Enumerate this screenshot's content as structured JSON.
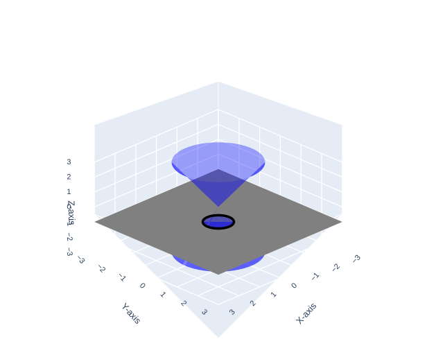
{
  "chart_data": {
    "type": "surface3d",
    "title": "",
    "axes": {
      "x": {
        "title": "X-axis",
        "range": [
          -3,
          3
        ],
        "ticks": [
          -3,
          -2,
          -1,
          0,
          1,
          2,
          3
        ]
      },
      "y": {
        "title": "Y-axis",
        "range": [
          -3,
          3
        ],
        "ticks": [
          -3,
          -2,
          -1,
          0,
          1,
          2,
          3
        ]
      },
      "z": {
        "title": "Z-axis",
        "range": [
          -3,
          3
        ],
        "ticks": [
          -3,
          -2,
          -1,
          0,
          1,
          2,
          3
        ]
      }
    },
    "scene": {
      "background": "#e5ecf6",
      "gridcolor": "#ffffff"
    },
    "traces": [
      {
        "kind": "double-cone",
        "apex_z": 0,
        "radius_at_z3": 1.6,
        "z_range": [
          -3,
          3
        ],
        "color": "#0000ff",
        "opacity": 0.45
      },
      {
        "kind": "plane",
        "z": -1,
        "x_range": [
          -3,
          3
        ],
        "y_range": [
          -3,
          3
        ],
        "color": "#808080",
        "opacity": 1
      },
      {
        "kind": "circle",
        "z": -1,
        "radius": 0.533,
        "color": "#000000"
      }
    ]
  }
}
